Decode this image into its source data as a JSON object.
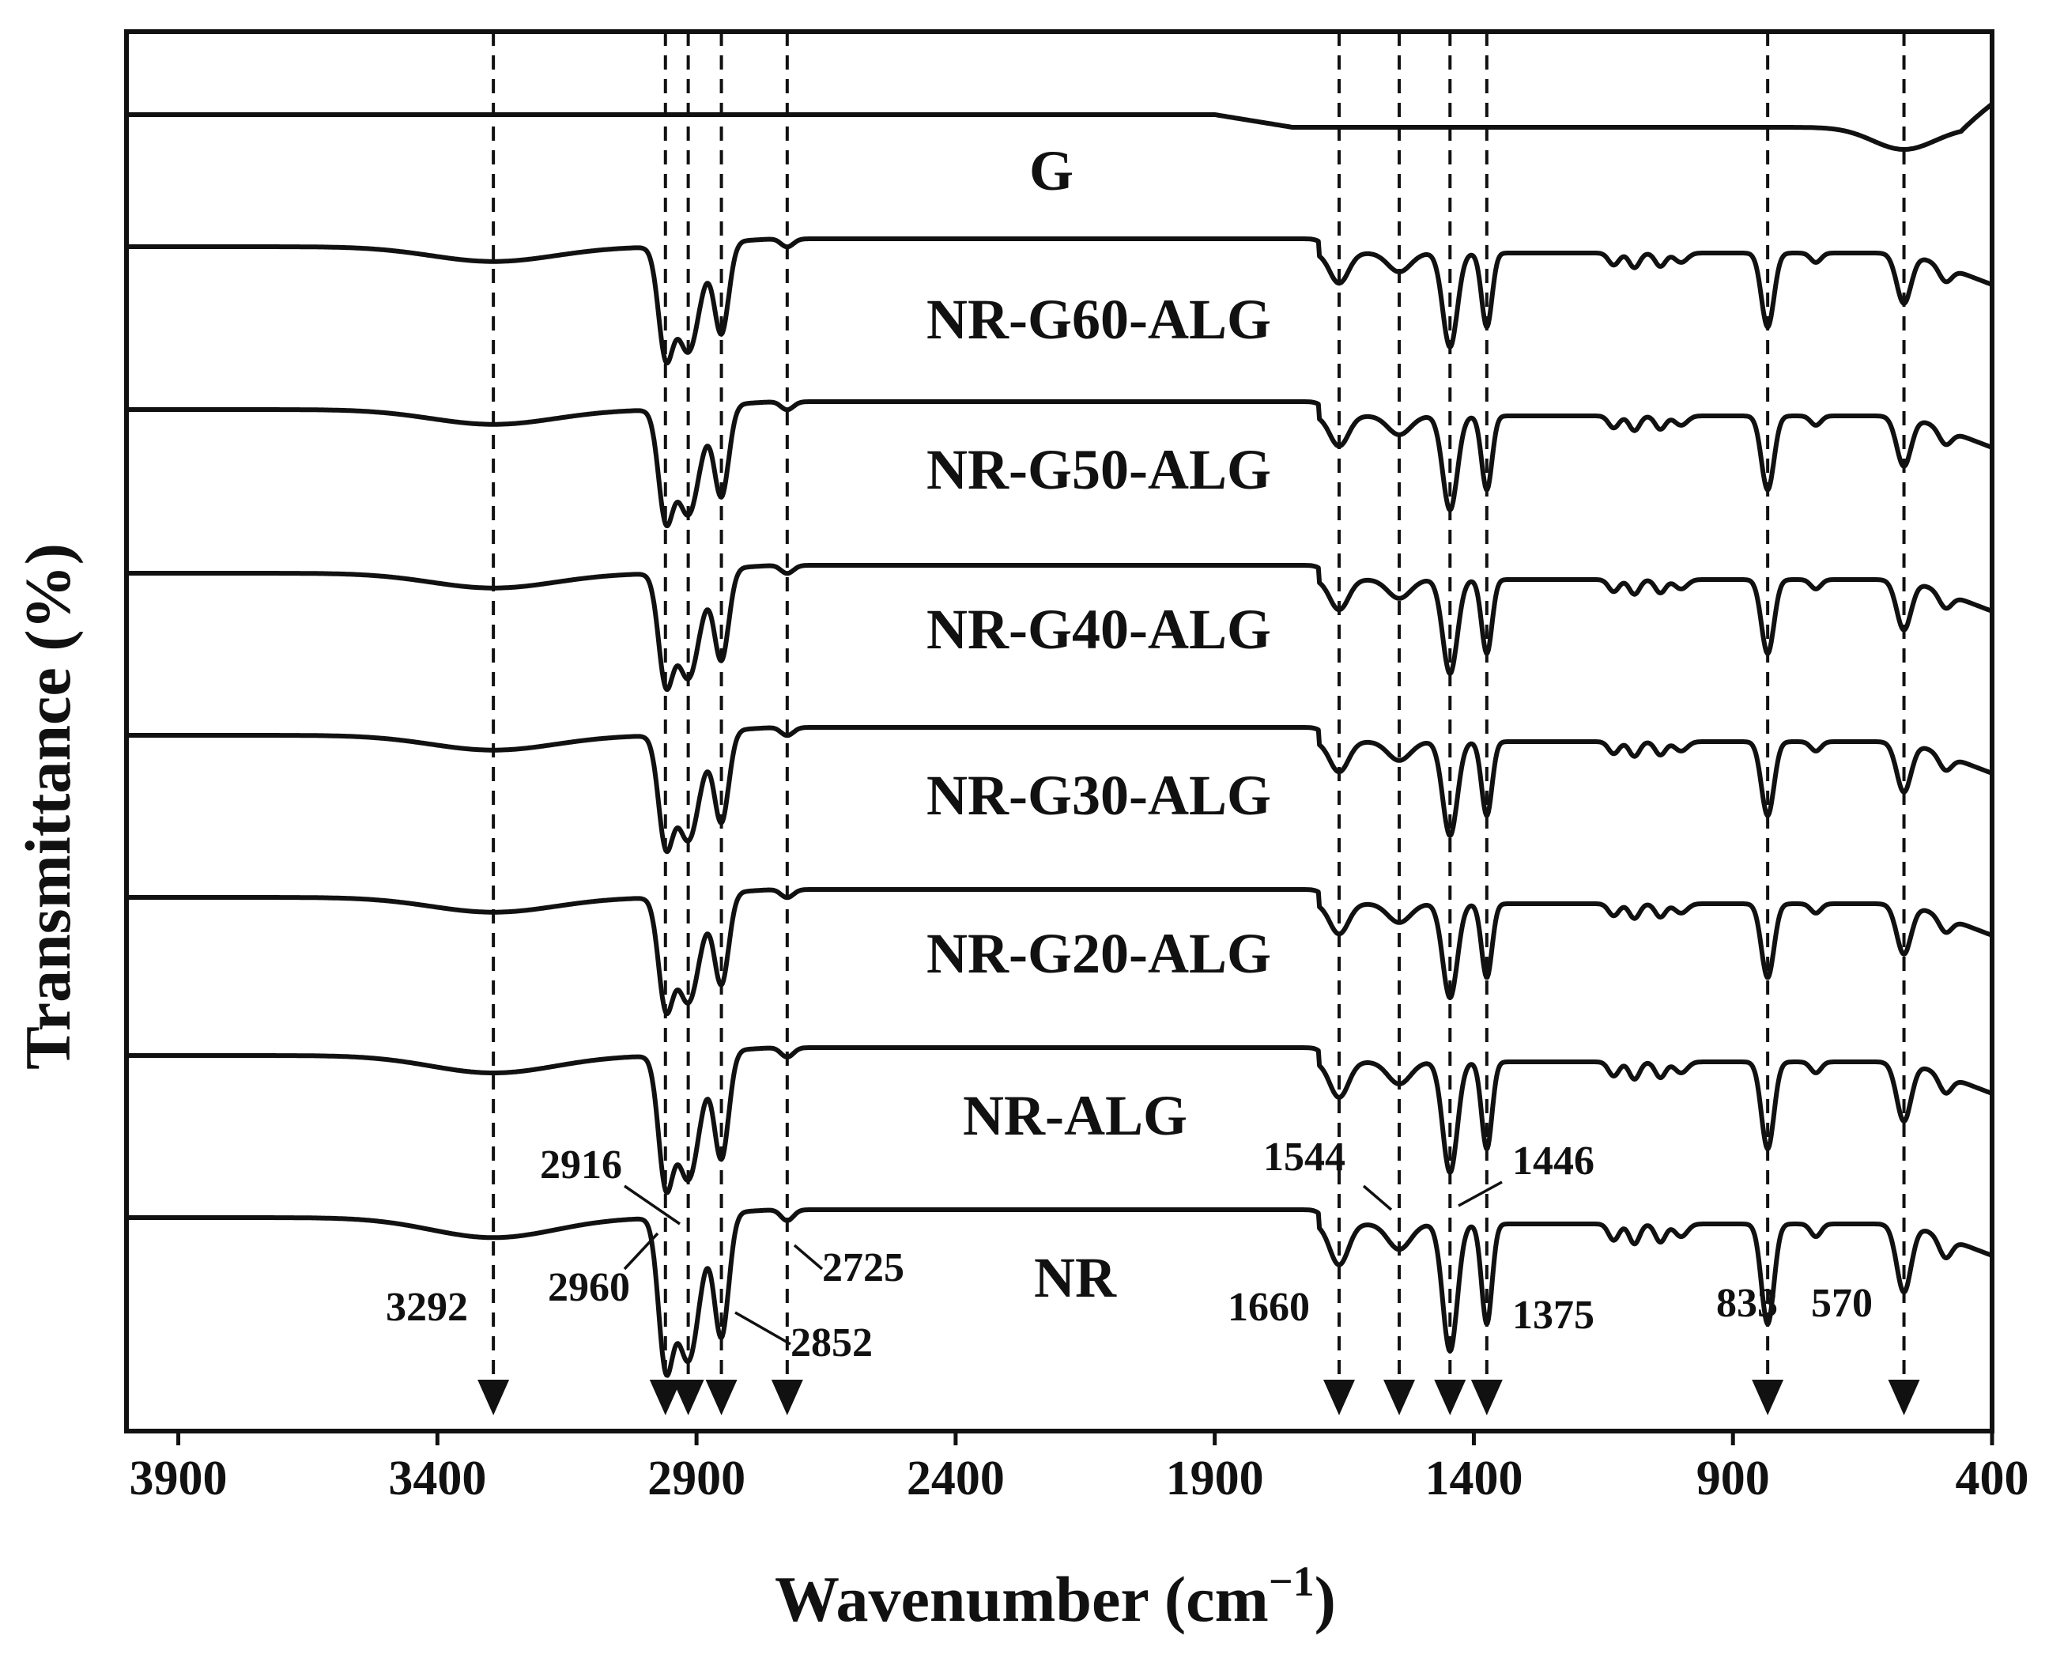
{
  "chart_data": {
    "type": "line",
    "title": "",
    "xlabel": "Wavenumber (cm",
    "xlabel_sup": "−1",
    "xlabel_close": ")",
    "ylabel": "Transmittance (%)",
    "xlim": [
      4000,
      400
    ],
    "x_ticks": [
      3900,
      3400,
      2900,
      2400,
      1900,
      1400,
      900,
      400
    ],
    "y_ticks_shown": false,
    "guide_lines": [
      3292,
      2960,
      2916,
      2852,
      2725,
      1660,
      1544,
      1446,
      1375,
      833,
      570
    ],
    "peak_annotations": [
      {
        "label": "3292",
        "x": 3292
      },
      {
        "label": "2960",
        "x": 2960
      },
      {
        "label": "2916",
        "x": 2916
      },
      {
        "label": "2852",
        "x": 2852
      },
      {
        "label": "2725",
        "x": 2725
      },
      {
        "label": "1660",
        "x": 1660
      },
      {
        "label": "1544",
        "x": 1544
      },
      {
        "label": "1446",
        "x": 1446
      },
      {
        "label": "1375",
        "x": 1375
      },
      {
        "label": "833",
        "x": 833
      },
      {
        "label": "570",
        "x": 570
      }
    ],
    "series": [
      {
        "name": "G",
        "offset": 7,
        "depth": 0.12,
        "kind": "graphite"
      },
      {
        "name": "NR-G60-ALG",
        "offset": 6,
        "depth": 0.85,
        "kind": "nr"
      },
      {
        "name": "NR-G50-ALG",
        "offset": 5,
        "depth": 0.85,
        "kind": "nr"
      },
      {
        "name": "NR-G40-ALG",
        "offset": 4,
        "depth": 0.85,
        "kind": "nr"
      },
      {
        "name": "NR-G30-ALG",
        "offset": 3,
        "depth": 0.85,
        "kind": "nr"
      },
      {
        "name": "NR-G20-ALG",
        "offset": 2,
        "depth": 0.85,
        "kind": "nr"
      },
      {
        "name": "NR-ALG",
        "offset": 1,
        "depth": 1.0,
        "kind": "nr"
      },
      {
        "name": "NR",
        "offset": 0,
        "depth": 1.15,
        "kind": "nr"
      }
    ]
  }
}
